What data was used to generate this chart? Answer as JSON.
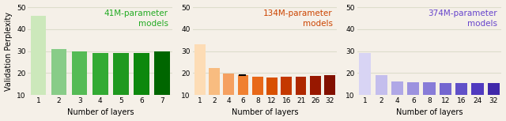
{
  "panel1": {
    "title": "41M-parameter\nmodels",
    "title_color": "#22aa22",
    "xlabel": "Number of layers",
    "ylabel": "Validation Perplexity",
    "x_labels": [
      "1",
      "2",
      "3",
      "4",
      "5",
      "6",
      "7"
    ],
    "values": [
      46.0,
      31.0,
      29.7,
      29.3,
      29.2,
      29.3,
      29.8
    ],
    "colors": [
      "#cce8bb",
      "#88cc88",
      "#55bb55",
      "#33aa33",
      "#1f991f",
      "#0d880d",
      "#006600"
    ],
    "ylim": [
      10,
      50
    ],
    "yticks": [
      10,
      20,
      30,
      40,
      50
    ],
    "bar_bottom": 10
  },
  "panel2": {
    "title": "134M-parameter\nmodels",
    "title_color": "#cc4400",
    "xlabel": "Number of layers",
    "ylabel": "",
    "x_labels": [
      "1",
      "2",
      "4",
      "6",
      "8",
      "12",
      "16",
      "21",
      "26",
      "32"
    ],
    "values": [
      33.2,
      22.3,
      19.7,
      18.9,
      18.3,
      18.1,
      18.2,
      18.3,
      18.7,
      19.1
    ],
    "colors": [
      "#fddcb5",
      "#f8bc80",
      "#f5a060",
      "#f08030",
      "#e86818",
      "#d85000",
      "#c43800",
      "#ae2800",
      "#981800",
      "#821000"
    ],
    "ylim": [
      10,
      50
    ],
    "yticks": [
      10,
      20,
      30,
      40,
      50
    ],
    "bar_bottom": 10,
    "errorbar_idx": 3,
    "errorbar_val": 18.9
  },
  "panel3": {
    "title": "374M-parameter\nmodels",
    "title_color": "#6644cc",
    "xlabel": "Number of layers",
    "ylabel": "",
    "x_labels": [
      "1",
      "2",
      "4",
      "6",
      "8",
      "12",
      "16",
      "24",
      "32"
    ],
    "values": [
      29.0,
      19.0,
      16.2,
      15.7,
      15.9,
      15.4,
      15.3,
      15.3,
      15.3
    ],
    "colors": [
      "#d8d4f4",
      "#c4beed",
      "#b0a8e6",
      "#9c92df",
      "#887cd8",
      "#7466d0",
      "#6050c8",
      "#503ac0",
      "#4028aa"
    ],
    "ylim": [
      10,
      50
    ],
    "yticks": [
      10,
      20,
      30,
      40,
      50
    ],
    "bar_bottom": 10
  },
  "background_color": "#f5f0e8",
  "grid_color": "#ddddcc",
  "figsize": [
    6.4,
    1.53
  ],
  "dpi": 100
}
